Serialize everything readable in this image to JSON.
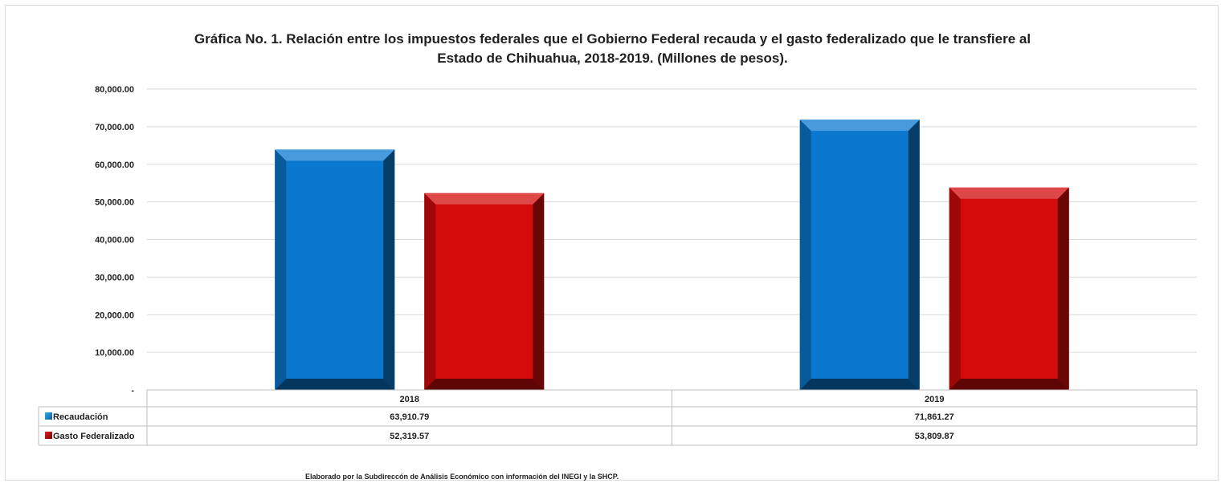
{
  "chart_data": {
    "type": "bar",
    "title_line1": "Gráfica No. 1. Relación entre los impuestos federales que el Gobierno Federal recauda y el gasto federalizado que le transfiere al",
    "title_line2": "Estado de Chihuahua, 2018-2019. (Millones de pesos).",
    "categories": [
      "2018",
      "2019"
    ],
    "series": [
      {
        "name": "Recaudación",
        "values": [
          63910.79,
          71861.27
        ],
        "value_labels": [
          "63,910.79",
          "71,861.27"
        ],
        "color": "#0a78cf"
      },
      {
        "name": "Gasto Federalizado",
        "values": [
          52319.57,
          53809.87
        ],
        "value_labels": [
          "52,319.57",
          "53,809.87"
        ],
        "color": "#d40b0b"
      }
    ],
    "ylim": [
      0,
      80000
    ],
    "yticks": [
      0,
      10000,
      20000,
      30000,
      40000,
      50000,
      60000,
      70000,
      80000
    ],
    "ytick_labels": [
      "-",
      "10,000.00",
      "20,000.00",
      "30,000.00",
      "40,000.00",
      "50,000.00",
      "60,000.00",
      "70,000.00",
      "80,000.00"
    ],
    "grid": true,
    "legend": "data-table",
    "xlabel": "",
    "ylabel": ""
  },
  "footnote": "Elaborado por la Subdireccón de Análisis Económico con información del INEGI y la SHCP."
}
